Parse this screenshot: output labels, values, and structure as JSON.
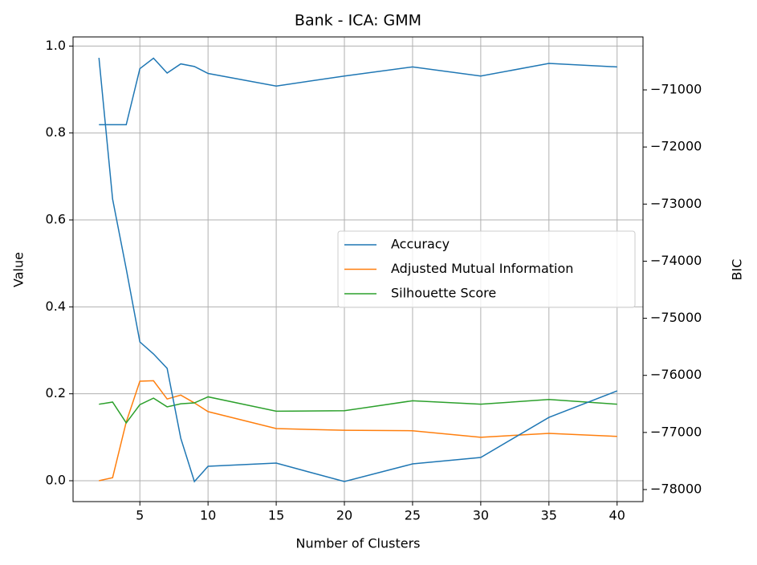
{
  "chart_data": {
    "type": "line",
    "title": "Bank - ICA: GMM",
    "x_label": "Number of Clusters",
    "y_label": "Value",
    "y2_label": "BIC",
    "x": [
      2,
      3,
      4,
      5,
      6,
      7,
      8,
      9,
      10,
      15,
      20,
      25,
      30,
      35,
      40
    ],
    "xlim": [
      0.1,
      41.9
    ],
    "xticks": [
      5,
      10,
      15,
      20,
      25,
      30,
      35,
      40
    ],
    "ylim": [
      -0.048,
      1.021
    ],
    "yticks": [
      {
        "value": 0,
        "label": "0.0"
      },
      0.2,
      0.4,
      0.6,
      0.8,
      {
        "value": 1,
        "label": "1.0"
      }
    ],
    "y2lim": [
      -78211,
      -70072
    ],
    "y2ticks": [
      {
        "value": -78000,
        "label": "−78000"
      },
      {
        "value": -77000,
        "label": "−77000"
      },
      {
        "value": -76000,
        "label": "−76000"
      },
      {
        "value": -75000,
        "label": "−75000"
      },
      {
        "value": -74000,
        "label": "−74000"
      },
      {
        "value": -73000,
        "label": "−73000"
      },
      {
        "value": -72000,
        "label": "−72000"
      },
      {
        "value": -71000,
        "label": "−71000"
      }
    ],
    "grid": true,
    "legend": "center right",
    "series": [
      {
        "name": "Accuracy",
        "color": "#1f77b4",
        "values": [
          0.819,
          0.819,
          0.819,
          0.948,
          0.972,
          0.938,
          0.959,
          0.953,
          0.937,
          0.908,
          0.931,
          0.952,
          0.931,
          0.96,
          0.952
        ]
      },
      {
        "name": "Adjusted Mutual Information",
        "color": "#ff7f0e",
        "values": [
          0,
          0.007,
          0.135,
          0.229,
          0.23,
          0.188,
          0.197,
          0.179,
          0.159,
          0.12,
          0.116,
          0.115,
          0.1,
          0.109,
          0.102
        ]
      },
      {
        "name": "Silhouette Score",
        "color": "#2ca02c",
        "values": [
          0.176,
          0.181,
          0.133,
          0.175,
          0.19,
          0.17,
          0.177,
          0.179,
          0.193,
          0.16,
          0.161,
          0.184,
          0.176,
          0.187,
          0.176
        ]
      },
      {
        "color": "#1f77b4",
        "axis": "y2",
        "values": [
          -70438,
          -72912,
          -74135,
          -75414,
          -75625,
          -75878,
          -77101,
          -77860,
          -77593,
          -77537,
          -77860,
          -77551,
          -77438,
          -76736,
          -76272
        ]
      }
    ]
  }
}
